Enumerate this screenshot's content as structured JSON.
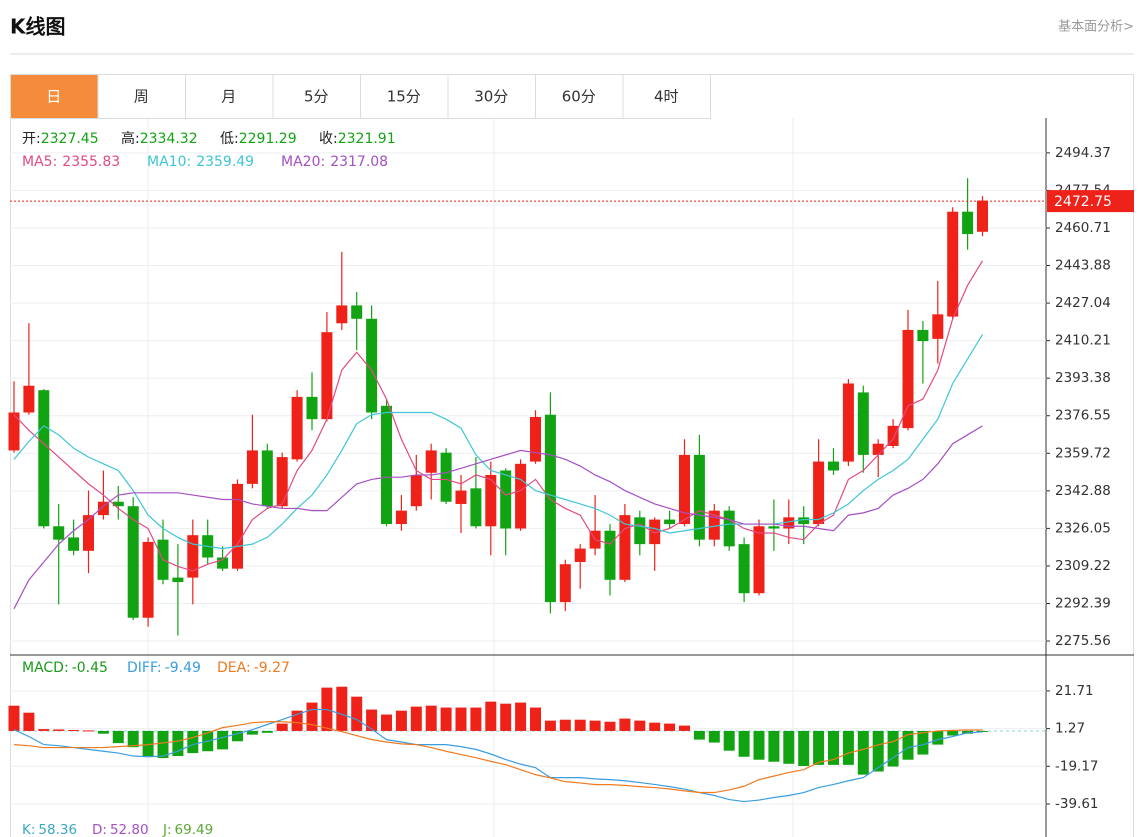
{
  "header": {
    "title": "K线图",
    "link": "基本面分析>"
  },
  "tabs": [
    "日",
    "周",
    "月",
    "5分",
    "15分",
    "30分",
    "60分",
    "4时"
  ],
  "active_tab": 0,
  "chart_data": [
    {
      "type": "candlestick",
      "ylim": [
        2269.3,
        2510.0
      ],
      "yticks": [
        2494.37,
        2477.54,
        2460.71,
        2443.88,
        2427.04,
        2410.21,
        2393.38,
        2376.55,
        2359.72,
        2342.88,
        2326.05,
        2309.22,
        2292.39,
        2275.56
      ],
      "grid": true,
      "up_color": "#ee2218",
      "down_color": "#12a312",
      "ohlc_legend": [
        {
          "label": "开:",
          "value": 2327.45
        },
        {
          "label": "高:",
          "value": 2334.32
        },
        {
          "label": "低:",
          "value": 2291.29
        },
        {
          "label": "收:",
          "value": 2321.91
        }
      ],
      "ma_legend": [
        {
          "label": "MA5:",
          "value": 2355.83
        },
        {
          "label": "MA10:",
          "value": 2359.49
        },
        {
          "label": "MA20:",
          "value": 2317.08
        }
      ],
      "last_price": 2472.75,
      "open": [
        2361,
        2378,
        2388,
        2327,
        2322,
        2316,
        2332,
        2338,
        2336,
        2286,
        2321,
        2304,
        2304,
        2323,
        2313,
        2308,
        2346,
        2361,
        2336,
        2357,
        2385,
        2375,
        2418,
        2426,
        2420,
        2381,
        2328,
        2336,
        2351,
        2360,
        2337,
        2344,
        2327,
        2352,
        2326,
        2356,
        2377,
        2293,
        2311,
        2317,
        2325,
        2303,
        2331,
        2319,
        2330,
        2328,
        2359,
        2321,
        2334,
        2319,
        2297,
        2327,
        2326,
        2331,
        2328,
        2356,
        2356,
        2387,
        2359,
        2363,
        2371,
        2415,
        2411,
        2421,
        2468,
        2459
      ],
      "high": [
        2392,
        2418,
        2388.5,
        2337,
        2330,
        2343,
        2352,
        2345,
        2340,
        2322,
        2330,
        2319,
        2330,
        2330,
        2318,
        2348,
        2377,
        2364,
        2360,
        2388,
        2396,
        2423,
        2450,
        2432,
        2426,
        2384,
        2341,
        2359,
        2364,
        2362,
        2350,
        2358,
        2356,
        2353,
        2357,
        2379,
        2387,
        2312,
        2319,
        2341,
        2328,
        2337,
        2334,
        2331,
        2334,
        2366,
        2368,
        2337,
        2336,
        2322,
        2330,
        2339,
        2339,
        2336,
        2366,
        2362,
        2393,
        2390,
        2366,
        2375,
        2424,
        2419,
        2437,
        2470,
        2483,
        2475
      ],
      "low": [
        2360,
        2377,
        2326,
        2292,
        2314,
        2306,
        2330,
        2330,
        2285,
        2282,
        2301,
        2278,
        2292,
        2310,
        2307,
        2307,
        2344,
        2335,
        2335,
        2356,
        2370,
        2374,
        2415,
        2406,
        2375,
        2327,
        2325,
        2334,
        2339,
        2337,
        2324,
        2326,
        2314,
        2314,
        2325,
        2355,
        2288,
        2289,
        2299,
        2314,
        2296,
        2302,
        2314,
        2307,
        2326,
        2327,
        2318,
        2318,
        2316,
        2293,
        2296,
        2316,
        2319,
        2319,
        2327,
        2350,
        2354,
        2351,
        2349,
        2362,
        2370,
        2391,
        2400,
        2420,
        2451,
        2457
      ],
      "close": [
        2378,
        2390,
        2327,
        2321,
        2316,
        2332,
        2338,
        2336,
        2286,
        2320,
        2303,
        2302,
        2323,
        2313,
        2308,
        2346,
        2361,
        2336,
        2358,
        2385,
        2375,
        2414,
        2426,
        2420,
        2378,
        2328,
        2334,
        2350,
        2361,
        2338,
        2343,
        2327,
        2350,
        2326,
        2355,
        2376,
        2293,
        2310,
        2317,
        2325,
        2303,
        2332,
        2319,
        2330,
        2328,
        2359,
        2321,
        2334,
        2318,
        2297,
        2327,
        2326,
        2331,
        2328,
        2356,
        2352,
        2391,
        2359,
        2364,
        2372,
        2415,
        2410,
        2422,
        2468,
        2458,
        2473
      ],
      "series": [
        {
          "color": "#e24a86",
          "values": [
            2377,
            2370,
            2364,
            2358,
            2352,
            2346,
            2341,
            2335,
            2330,
            2326,
            2312,
            2309,
            2307,
            2310,
            2312,
            2319,
            2330,
            2335,
            2337,
            2352,
            2361,
            2375,
            2397,
            2405,
            2397,
            2384,
            2366,
            2352,
            2348,
            2348,
            2346,
            2350,
            2348,
            2341,
            2343,
            2348,
            2339,
            2335,
            2332,
            2321,
            2319,
            2326,
            2328,
            2324,
            2326,
            2330,
            2334,
            2332,
            2330,
            2326,
            2324,
            2324,
            2322,
            2321,
            2328,
            2332,
            2348,
            2352,
            2359,
            2366,
            2381,
            2384,
            2397,
            2420,
            2435,
            2446
          ]
        },
        {
          "color": "#3ec6d6",
          "values": [
            2357,
            2365,
            2372,
            2368,
            2362,
            2358,
            2355,
            2352,
            2343,
            2332,
            2326,
            2322,
            2319,
            2318,
            2317,
            2318,
            2319,
            2322,
            2328,
            2335,
            2341,
            2350,
            2361,
            2373,
            2377,
            2378,
            2378,
            2378,
            2378,
            2375,
            2371,
            2359,
            2352,
            2350,
            2348,
            2343,
            2341,
            2339,
            2337,
            2335,
            2332,
            2328,
            2327,
            2326,
            2324,
            2325,
            2326,
            2327,
            2328,
            2328,
            2328,
            2328,
            2329,
            2330,
            2330,
            2333,
            2337,
            2343,
            2348,
            2352,
            2357,
            2366,
            2375,
            2391,
            2402,
            2413
          ]
        },
        {
          "color": "#a650c2",
          "values": [
            2290,
            2303,
            2311,
            2319,
            2325,
            2330,
            2336,
            2341,
            2342,
            2342,
            2342,
            2342,
            2341,
            2340,
            2339,
            2339,
            2337,
            2336,
            2335,
            2335,
            2334,
            2334,
            2340,
            2346,
            2348,
            2349,
            2349,
            2350,
            2350,
            2351,
            2353,
            2355,
            2357,
            2359,
            2361,
            2360,
            2359,
            2357,
            2354,
            2350,
            2347,
            2343,
            2340,
            2337,
            2335,
            2333,
            2332,
            2331,
            2330,
            2328,
            2328,
            2328,
            2327,
            2327,
            2326,
            2325,
            2332,
            2333,
            2335,
            2341,
            2344,
            2348,
            2355,
            2364,
            2368,
            2372
          ]
        }
      ]
    },
    {
      "type": "macd",
      "ylim": [
        -48.3,
        41.2
      ],
      "yticks": [
        21.71,
        1.27,
        -19.17,
        -39.61
      ],
      "grid": true,
      "legend": [
        {
          "label": "MACD:",
          "value": -0.45,
          "color": "#1a9a1a"
        },
        {
          "label": "DIFF:",
          "value": -9.49,
          "color": "#3a9de0"
        },
        {
          "label": "DEA:",
          "value": -9.27,
          "color": "#f07a20"
        }
      ],
      "up_color": "#ee2218",
      "down_color": "#12a312",
      "histogram": [
        13.7,
        9.9,
        1.0,
        0.8,
        0.5,
        0.3,
        -1.5,
        -6.6,
        -8.8,
        -13.6,
        -14.7,
        -13.6,
        -12,
        -11,
        -10,
        -5.6,
        -2,
        -1,
        4,
        11,
        15.4,
        23.5,
        24,
        18.6,
        11.6,
        8.9,
        11,
        13.2,
        13.7,
        12.7,
        12.7,
        12.7,
        15.9,
        14.8,
        15.4,
        12.7,
        5.6,
        6.1,
        6.1,
        5.6,
        5,
        6.7,
        5.6,
        4.5,
        4,
        2.9,
        -4.7,
        -6.3,
        -10.7,
        -14,
        -15.6,
        -16.7,
        -17.8,
        -19,
        -18.4,
        -18.4,
        -18.4,
        -23.7,
        -22,
        -19.3,
        -15.6,
        -12.8,
        -7.4,
        -2.5,
        -1.5,
        -0.45
      ],
      "series": [
        {
          "color": "#3a9de0",
          "values": [
            0.7,
            -3,
            -7.4,
            -8,
            -9,
            -10,
            -11,
            -12,
            -13.6,
            -14,
            -13.6,
            -11,
            -7.4,
            -5.5,
            -3.6,
            -1.5,
            0.7,
            3.5,
            6.2,
            9,
            11.6,
            11.6,
            9,
            6.2,
            1,
            -4.7,
            -6,
            -7.4,
            -7.4,
            -7.4,
            -8.5,
            -10,
            -12.5,
            -15.5,
            -18,
            -19.9,
            -25.3,
            -25.3,
            -25.3,
            -26,
            -26.4,
            -27,
            -28,
            -29,
            -30.2,
            -31.5,
            -33.4,
            -35,
            -37.2,
            -38.3,
            -37.5,
            -36.1,
            -35,
            -33.4,
            -30.7,
            -29,
            -27,
            -25.3,
            -19.9,
            -14.5,
            -9,
            -7.5,
            -4.7,
            -3,
            -1,
            -0.5
          ]
        },
        {
          "color": "#f07a20",
          "values": [
            -7.4,
            -8,
            -9,
            -9,
            -9,
            -9,
            -9,
            -8.5,
            -8,
            -7.4,
            -6.5,
            -5.5,
            -3.6,
            -1,
            1.8,
            3,
            4.5,
            5,
            5,
            4.5,
            3.4,
            1.5,
            -0.4,
            -2.5,
            -4.7,
            -6,
            -7,
            -7.4,
            -9,
            -11,
            -12.8,
            -14.5,
            -16.5,
            -18.3,
            -21,
            -23.7,
            -25.5,
            -27.5,
            -28.2,
            -29.1,
            -29.1,
            -29.5,
            -30.2,
            -30.7,
            -31.5,
            -32.5,
            -33.4,
            -33.4,
            -32,
            -30,
            -26.4,
            -24.5,
            -22.5,
            -21,
            -17,
            -15.5,
            -12,
            -10,
            -7.5,
            -5.8,
            -2,
            -1,
            0,
            0.3,
            0.5,
            0.5
          ]
        }
      ]
    }
  ],
  "kdj": [
    {
      "label": "K:",
      "value": 58.36,
      "color": "#3aa8c0"
    },
    {
      "label": "D:",
      "value": {
        "value": 52.8,
        "label": "52.80"
      },
      "color": "#a650c2"
    },
    {
      "label": "J:",
      "value": 69.49,
      "color": "#5aa832"
    }
  ]
}
